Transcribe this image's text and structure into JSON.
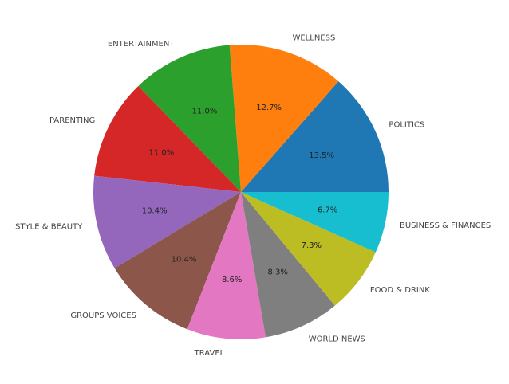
{
  "chart_data": {
    "type": "pie",
    "title": "",
    "start_angle_deg": 0,
    "direction": "counterclockwise",
    "slices": [
      {
        "label": "POLITICS",
        "value": 13.5,
        "pct_text": "13.5%",
        "color": "#1f77b4"
      },
      {
        "label": "WELLNESS",
        "value": 12.7,
        "pct_text": "12.7%",
        "color": "#ff7f0e"
      },
      {
        "label": "ENTERTAINMENT",
        "value": 11.0,
        "pct_text": "11.0%",
        "color": "#2ca02c"
      },
      {
        "label": "PARENTING",
        "value": 11.0,
        "pct_text": "11.0%",
        "color": "#d62728"
      },
      {
        "label": "STYLE & BEAUTY",
        "value": 10.4,
        "pct_text": "10.4%",
        "color": "#9467bd"
      },
      {
        "label": "GROUPS VOICES",
        "value": 10.4,
        "pct_text": "10.4%",
        "color": "#8c564b"
      },
      {
        "label": "TRAVEL",
        "value": 8.6,
        "pct_text": "8.6%",
        "color": "#e377c2"
      },
      {
        "label": "WORLD NEWS",
        "value": 8.3,
        "pct_text": "8.3%",
        "color": "#7f7f7f"
      },
      {
        "label": "FOOD & DRINK",
        "value": 7.3,
        "pct_text": "7.3%",
        "color": "#bcbd22"
      },
      {
        "label": "BUSINESS & FINANCES",
        "value": 6.7,
        "pct_text": "6.7%",
        "color": "#17becf"
      }
    ]
  }
}
